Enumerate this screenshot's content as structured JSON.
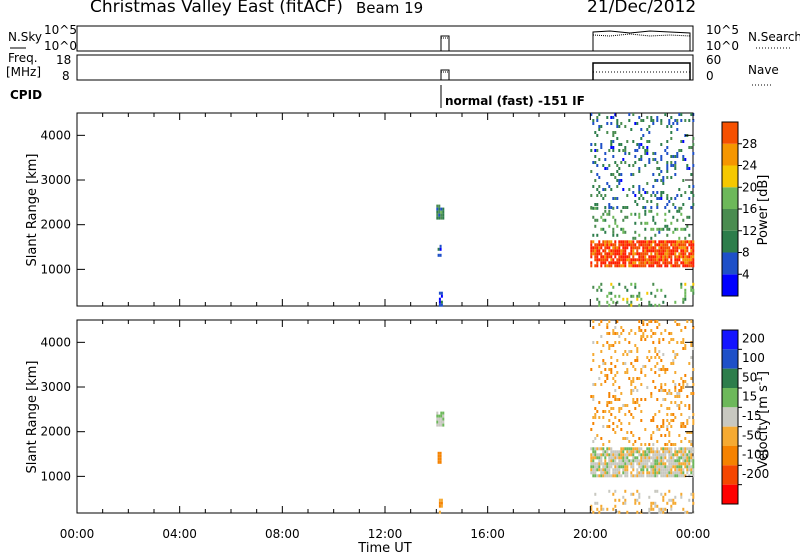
{
  "header": {
    "station": "Christmas Valley East (fitACF)",
    "beam": "Beam 19",
    "date": "21/Dec/2012"
  },
  "aux_panels": {
    "nsky_label": "N.Sky",
    "nsky_ticks": [
      "10^5",
      "10^0"
    ],
    "nsearch_label": "N.Search",
    "nsearch_ticks": [
      "10^5",
      "10^0"
    ],
    "freq_label_1": "Freq.",
    "freq_label_2": "[MHz]",
    "freq_ticks": [
      "18",
      "8"
    ],
    "nave_label": "Nave",
    "nave_ticks": [
      "60",
      "0"
    ],
    "cpid_label": "CPID",
    "cpid_text": "normal (fast) -151 IF"
  },
  "colors": {
    "power_scale": [
      "#0000ff",
      "#1e50c8",
      "#2d7d4b",
      "#4a8c50",
      "#6db85a",
      "#f5c800",
      "#f59600",
      "#f55000",
      "#ff1e00"
    ],
    "velocity_scale": [
      "#ff0000",
      "#f54600",
      "#f58200",
      "#f5aa32",
      "#c8c8c0",
      "#6db85a",
      "#2d7d4b",
      "#1e50c8",
      "#1414ff"
    ]
  },
  "chart_data": [
    {
      "type": "heatmap",
      "title": "",
      "xlabel": "",
      "ylabel": "Slant Range [km]",
      "x_ticks": [
        "00:00",
        "04:00",
        "08:00",
        "12:00",
        "16:00",
        "20:00",
        "00:00"
      ],
      "y_ticks": [
        1000,
        2000,
        3000,
        4000
      ],
      "xlim_hours": [
        0,
        24
      ],
      "ylim_km": [
        180,
        4500
      ],
      "colorbar_label": "Power [dB]",
      "colorbar_ticks": [
        4,
        8,
        12,
        16,
        20,
        24,
        28
      ],
      "colorbar_range": [
        0,
        32
      ],
      "bands": [
        {
          "t0": 14.0,
          "t1": 14.25,
          "r0": 2150,
          "r1": 2450,
          "value": 10
        },
        {
          "t0": 14.05,
          "t1": 14.2,
          "r0": 1300,
          "r1": 1550,
          "value": 6
        },
        {
          "t0": 14.1,
          "t1": 14.2,
          "r0": 220,
          "r1": 500,
          "value": 5
        },
        {
          "t0": 20.0,
          "t1": 24.0,
          "r0": 1050,
          "r1": 1650,
          "value": 28
        },
        {
          "t0": 20.0,
          "t1": 24.0,
          "r0": 1700,
          "r1": 2400,
          "value": 12
        },
        {
          "t0": 20.0,
          "t1": 24.0,
          "r0": 2400,
          "r1": 4500,
          "value": 8
        },
        {
          "t0": 20.0,
          "t1": 24.0,
          "r0": 200,
          "r1": 700,
          "value": 14
        }
      ]
    },
    {
      "type": "heatmap",
      "title": "",
      "xlabel": "Time UT",
      "ylabel": "Slant Range [km]",
      "x_ticks": [
        "00:00",
        "04:00",
        "08:00",
        "12:00",
        "16:00",
        "20:00",
        "00:00"
      ],
      "y_ticks": [
        1000,
        2000,
        3000,
        4000
      ],
      "xlim_hours": [
        0,
        24
      ],
      "ylim_km": [
        180,
        4500
      ],
      "colorbar_label": "Velocity [m s^-1]",
      "colorbar_unit_main": "Velocity [m s",
      "colorbar_unit_exp": "-1",
      "colorbar_unit_end": "]",
      "colorbar_ticks": [
        200,
        100,
        50,
        15,
        -15,
        -50,
        -100,
        -200
      ],
      "bands": [
        {
          "t0": 14.0,
          "t1": 14.25,
          "r0": 2150,
          "r1": 2450,
          "value": 20
        },
        {
          "t0": 14.05,
          "t1": 14.2,
          "r0": 1300,
          "r1": 1550,
          "value": -60
        },
        {
          "t0": 14.1,
          "t1": 14.2,
          "r0": 220,
          "r1": 500,
          "value": -60
        },
        {
          "t0": 20.0,
          "t1": 24.0,
          "r0": 1000,
          "r1": 1650,
          "value": 0
        },
        {
          "t0": 20.0,
          "t1": 24.0,
          "r0": 1700,
          "r1": 4500,
          "value": -40
        },
        {
          "t0": 20.0,
          "t1": 24.0,
          "r0": 200,
          "r1": 700,
          "value": -20
        }
      ]
    }
  ]
}
